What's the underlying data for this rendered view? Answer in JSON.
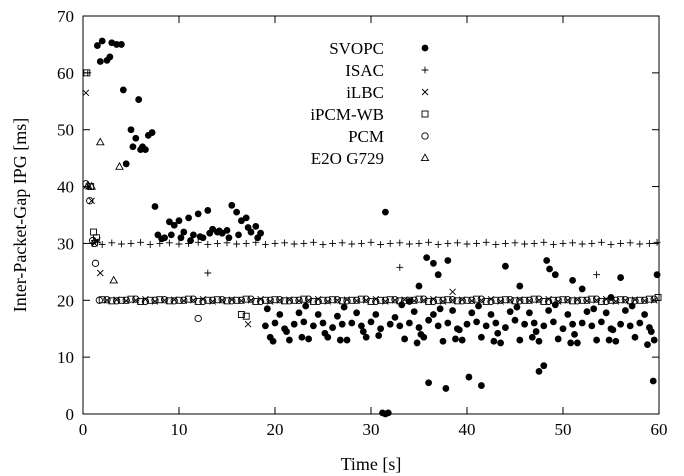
{
  "chart_data": {
    "type": "scatter",
    "title": "",
    "xlabel": "Time [s]",
    "ylabel": "Inter-Packet-Gap IPG [ms]",
    "xlim": [
      0,
      60
    ],
    "ylim": [
      0,
      70
    ],
    "xticks": [
      0,
      10,
      20,
      30,
      40,
      50,
      60
    ],
    "yticks": [
      0,
      10,
      20,
      30,
      40,
      50,
      60,
      70
    ],
    "grid": false,
    "legend_position": "top-center",
    "series": [
      {
        "name": "SVOPC",
        "marker": "filled-circle",
        "color": "#000000",
        "x": [
          1.5,
          2.0,
          2.5,
          3.0,
          3.5,
          4.0,
          1.8,
          2.8,
          4.2,
          4.5,
          5.0,
          5.5,
          5.8,
          6.2,
          6.8,
          7.2,
          7.5,
          5.2,
          6.0,
          6.5,
          7.8,
          8.5,
          9.0,
          9.5,
          10.0,
          10.5,
          11.0,
          11.5,
          12.0,
          12.5,
          13.0,
          13.5,
          14.0,
          14.5,
          15.0,
          15.5,
          16.0,
          16.5,
          17.0,
          17.5,
          18.0,
          18.5,
          8.2,
          9.2,
          10.2,
          11.2,
          12.2,
          13.2,
          14.2,
          15.2,
          16.2,
          17.2,
          18.2,
          19.0,
          20.0,
          21.0,
          22.0,
          23.0,
          24.0,
          25.0,
          26.0,
          27.0,
          28.0,
          29.0,
          30.0,
          31.0,
          32.0,
          33.0,
          34.0,
          35.0,
          36.0,
          37.0,
          38.0,
          39.0,
          40.0,
          41.0,
          42.0,
          43.0,
          44.0,
          45.0,
          46.0,
          47.0,
          48.0,
          49.0,
          50.0,
          51.0,
          52.0,
          53.0,
          54.0,
          55.0,
          56.0,
          57.0,
          58.0,
          59.0,
          19.5,
          20.5,
          21.5,
          22.5,
          23.5,
          24.5,
          25.5,
          26.5,
          27.5,
          28.5,
          29.5,
          30.5,
          32.5,
          33.5,
          34.5,
          35.5,
          36.5,
          37.5,
          38.5,
          39.5,
          40.5,
          41.5,
          42.5,
          43.5,
          44.5,
          45.5,
          46.5,
          47.5,
          48.5,
          49.5,
          50.5,
          51.5,
          52.5,
          53.5,
          54.5,
          55.5,
          56.5,
          57.5,
          58.5,
          59.5,
          19.2,
          21.2,
          23.2,
          25.2,
          27.2,
          29.2,
          33.2,
          35.2,
          37.2,
          39.2,
          41.2,
          43.2,
          45.2,
          47.2,
          49.2,
          51.2,
          53.2,
          55.2,
          57.2,
          59.2,
          19.8,
          22.8,
          26.8,
          30.8,
          34.8,
          38.8,
          42.8,
          46.8,
          50.8,
          54.8,
          58.8,
          31.2,
          31.5,
          31.8,
          34.0,
          35.0,
          35.8,
          36.5,
          37.0,
          38.0,
          40.2,
          41.5,
          44.0,
          45.5,
          48.0,
          48.6,
          49.2,
          51.0,
          52.0,
          55.0,
          56.0,
          59.4,
          59.8,
          31.5,
          48.3,
          36.0,
          37.8,
          47.5
        ],
        "y": [
          64.8,
          65.6,
          62.2,
          65.3,
          65.0,
          65.0,
          62.0,
          62.8,
          57.0,
          44.0,
          50.0,
          48.5,
          55.3,
          47.0,
          49.0,
          49.5,
          36.5,
          47.0,
          46.5,
          46.5,
          31.5,
          31.0,
          33.8,
          33.2,
          34.0,
          32.0,
          34.5,
          31.5,
          35.2,
          31.0,
          35.8,
          32.5,
          32.0,
          31.8,
          32.3,
          36.7,
          35.5,
          34.0,
          34.5,
          32.0,
          33.0,
          31.8,
          30.8,
          31.5,
          31.0,
          30.5,
          31.2,
          31.8,
          32.2,
          31.0,
          31.5,
          32.8,
          31.0,
          15.5,
          16.0,
          15.0,
          15.8,
          16.2,
          15.5,
          16.0,
          15.2,
          15.8,
          16.0,
          15.5,
          16.2,
          15.0,
          15.8,
          15.5,
          16.0,
          15.2,
          16.5,
          15.5,
          16.0,
          15.0,
          15.8,
          16.2,
          15.5,
          16.0,
          15.2,
          16.5,
          15.8,
          16.0,
          15.5,
          16.2,
          15.0,
          15.8,
          16.0,
          15.5,
          16.2,
          15.0,
          15.8,
          15.5,
          16.0,
          15.2,
          13.5,
          17.5,
          13.0,
          17.8,
          13.2,
          17.5,
          13.5,
          17.2,
          13.0,
          17.8,
          13.5,
          17.5,
          17.0,
          13.2,
          18.0,
          13.5,
          17.5,
          12.8,
          18.2,
          13.0,
          17.8,
          13.5,
          17.5,
          12.5,
          18.0,
          13.0,
          17.8,
          12.8,
          18.2,
          13.2,
          17.5,
          12.5,
          18.0,
          13.0,
          17.8,
          12.8,
          18.2,
          13.5,
          17.5,
          13.0,
          18.5,
          14.5,
          19.0,
          14.2,
          18.8,
          14.5,
          19.2,
          14.0,
          18.5,
          14.8,
          19.0,
          14.2,
          18.8,
          14.5,
          19.2,
          14.0,
          18.5,
          14.8,
          19.0,
          14.5,
          12.8,
          13.5,
          13.0,
          13.8,
          12.5,
          13.2,
          12.8,
          13.5,
          12.5,
          13.0,
          12.2,
          0.2,
          0.0,
          0.2,
          19.8,
          22.5,
          27.5,
          26.5,
          24.5,
          27.0,
          6.5,
          5.0,
          26.0,
          22.5,
          8.5,
          25.5,
          24.5,
          23.5,
          22.0,
          20.5,
          24.0,
          5.8,
          24.5,
          35.5,
          27.0,
          5.5,
          4.5,
          7.5
        ]
      },
      {
        "name": "ISAC",
        "marker": "plus",
        "color": "#000000",
        "x": [
          0.5,
          1.0,
          1.5,
          2.0,
          3.0,
          4.0,
          5.0,
          6.0,
          7.0,
          8.0,
          9.0,
          10.0,
          11.0,
          12.0,
          13.0,
          14.0,
          15.0,
          16.0,
          17.0,
          18.0,
          19.0,
          20.0,
          21.0,
          22.0,
          23.0,
          24.0,
          25.0,
          26.0,
          27.0,
          28.0,
          29.0,
          30.0,
          31.0,
          32.0,
          33.0,
          34.0,
          35.0,
          36.0,
          37.0,
          38.0,
          39.0,
          40.0,
          41.0,
          42.0,
          43.0,
          44.0,
          45.0,
          46.0,
          47.0,
          48.0,
          49.0,
          50.0,
          51.0,
          52.0,
          53.0,
          54.0,
          55.0,
          56.0,
          57.0,
          58.0,
          59.0,
          59.8,
          13.0,
          33.0,
          53.5,
          1.2
        ],
        "y": [
          60.0,
          30.0,
          30.2,
          29.8,
          30.1,
          29.9,
          30.0,
          30.2,
          29.8,
          30.0,
          30.1,
          29.9,
          30.0,
          30.2,
          29.8,
          30.0,
          30.1,
          29.9,
          30.0,
          30.2,
          29.8,
          30.0,
          30.1,
          29.9,
          30.0,
          30.2,
          29.8,
          30.0,
          30.1,
          29.9,
          30.0,
          30.2,
          29.8,
          30.0,
          30.1,
          29.9,
          30.0,
          30.2,
          29.8,
          30.0,
          30.1,
          29.9,
          30.0,
          30.2,
          29.8,
          30.0,
          30.1,
          29.9,
          30.0,
          30.2,
          29.8,
          30.0,
          30.1,
          29.9,
          30.0,
          30.2,
          29.8,
          30.0,
          30.1,
          29.9,
          30.0,
          30.2,
          24.8,
          25.8,
          24.5,
          30.5
        ]
      },
      {
        "name": "iLBC",
        "marker": "cross",
        "color": "#000000",
        "x": [
          0.3,
          0.6,
          0.9,
          1.2,
          1.8,
          2.5,
          3.5,
          4.5,
          5.5,
          6.5,
          7.5,
          8.5,
          9.5,
          10.5,
          11.5,
          12.5,
          13.5,
          14.5,
          15.5,
          16.5,
          17.5,
          18.5,
          19.5,
          20.5,
          21.5,
          22.5,
          23.5,
          24.5,
          25.5,
          26.5,
          27.5,
          28.5,
          29.5,
          30.5,
          31.5,
          32.5,
          33.5,
          34.5,
          35.5,
          36.5,
          37.5,
          38.5,
          39.5,
          40.5,
          41.5,
          42.5,
          43.5,
          44.5,
          45.5,
          46.5,
          47.5,
          48.5,
          49.5,
          50.5,
          51.5,
          52.5,
          53.5,
          54.5,
          55.5,
          56.5,
          57.5,
          58.5,
          59.5,
          1.5,
          17.2,
          38.5
        ],
        "y": [
          56.5,
          40.0,
          37.5,
          30.0,
          24.8,
          20.0,
          20.1,
          19.9,
          20.0,
          20.2,
          19.8,
          20.0,
          20.1,
          19.9,
          20.0,
          20.2,
          19.8,
          20.0,
          20.1,
          19.9,
          20.0,
          20.2,
          19.8,
          20.0,
          20.1,
          19.9,
          20.0,
          20.2,
          19.8,
          20.0,
          20.1,
          19.9,
          20.0,
          20.2,
          19.8,
          20.0,
          20.1,
          19.9,
          20.0,
          20.2,
          19.8,
          20.0,
          20.1,
          19.9,
          20.0,
          20.2,
          19.8,
          20.0,
          20.1,
          19.9,
          20.0,
          20.2,
          19.8,
          20.0,
          20.1,
          19.9,
          20.0,
          20.2,
          19.8,
          20.0,
          20.1,
          19.9,
          20.0,
          30.5,
          15.8,
          21.5
        ]
      },
      {
        "name": "iPCM-WB",
        "marker": "open-square",
        "color": "#000000",
        "x": [
          0.4,
          0.8,
          1.1,
          1.4,
          2.0,
          3.0,
          4.0,
          5.0,
          6.0,
          7.0,
          8.0,
          9.0,
          10.0,
          11.0,
          12.0,
          13.0,
          14.0,
          15.0,
          16.0,
          17.0,
          18.0,
          19.0,
          20.0,
          21.0,
          22.0,
          23.0,
          24.0,
          25.0,
          26.0,
          27.0,
          28.0,
          29.0,
          30.0,
          31.0,
          32.0,
          33.0,
          34.0,
          35.0,
          36.0,
          37.0,
          38.0,
          39.0,
          40.0,
          41.0,
          42.0,
          43.0,
          44.0,
          45.0,
          46.0,
          47.0,
          48.0,
          49.0,
          50.0,
          51.0,
          52.0,
          53.0,
          54.0,
          55.0,
          56.0,
          57.0,
          58.0,
          59.0,
          59.9,
          16.5,
          17.0
        ],
        "y": [
          60.0,
          40.0,
          32.0,
          31.0,
          20.1,
          19.9,
          20.0,
          20.2,
          19.8,
          20.0,
          20.1,
          19.9,
          20.0,
          20.2,
          19.8,
          20.0,
          20.1,
          19.9,
          20.0,
          20.2,
          19.8,
          20.0,
          20.1,
          19.9,
          20.0,
          20.2,
          19.8,
          20.0,
          20.1,
          19.9,
          20.0,
          20.2,
          19.8,
          20.0,
          20.1,
          19.9,
          20.0,
          20.2,
          19.8,
          20.0,
          20.1,
          19.9,
          20.0,
          20.2,
          19.8,
          20.0,
          20.1,
          19.9,
          20.0,
          20.2,
          19.8,
          20.0,
          20.1,
          19.9,
          20.0,
          20.2,
          19.8,
          20.0,
          20.1,
          19.9,
          20.0,
          20.2,
          20.5,
          17.5,
          17.2
        ]
      },
      {
        "name": "PCM",
        "marker": "open-circle",
        "color": "#000000",
        "x": [
          0.3,
          0.7,
          1.0,
          1.3,
          1.7,
          2.5,
          3.5,
          4.5,
          5.5,
          6.5,
          7.5,
          8.5,
          9.5,
          10.5,
          11.5,
          12.5,
          13.5,
          14.5,
          15.5,
          16.5,
          17.5,
          18.5,
          19.5,
          20.5,
          21.5,
          22.5,
          23.5,
          24.5,
          25.5,
          26.5,
          27.5,
          28.5,
          29.5,
          30.5,
          31.5,
          32.5,
          33.5,
          34.5,
          35.5,
          36.5,
          37.5,
          38.5,
          39.5,
          40.5,
          41.5,
          42.5,
          43.5,
          44.5,
          45.5,
          46.5,
          47.5,
          48.5,
          49.5,
          50.5,
          51.5,
          52.5,
          53.5,
          54.5,
          55.5,
          56.5,
          57.5,
          58.5,
          59.5,
          1.2,
          12.0
        ],
        "y": [
          40.5,
          37.5,
          30.5,
          26.5,
          20.0,
          20.1,
          19.9,
          20.0,
          20.2,
          19.8,
          20.0,
          20.1,
          19.9,
          20.0,
          20.2,
          19.8,
          20.0,
          20.1,
          19.9,
          20.0,
          20.2,
          19.8,
          20.0,
          20.1,
          19.9,
          20.0,
          20.2,
          19.8,
          20.0,
          20.1,
          19.9,
          20.0,
          20.2,
          19.8,
          20.0,
          20.1,
          19.9,
          20.0,
          20.2,
          19.8,
          20.0,
          20.1,
          19.9,
          20.0,
          20.2,
          19.8,
          20.0,
          20.1,
          19.9,
          20.0,
          20.2,
          19.8,
          20.0,
          20.1,
          19.9,
          20.0,
          20.2,
          19.8,
          20.0,
          20.1,
          19.9,
          20.0,
          20.2,
          30.0,
          16.8
        ]
      },
      {
        "name": "E2O G729",
        "marker": "open-triangle",
        "color": "#000000",
        "x": [
          1.8,
          3.8,
          3.2,
          0.5,
          0.9
        ],
        "y": [
          47.8,
          43.5,
          23.5,
          40.2,
          40.0
        ]
      }
    ]
  }
}
